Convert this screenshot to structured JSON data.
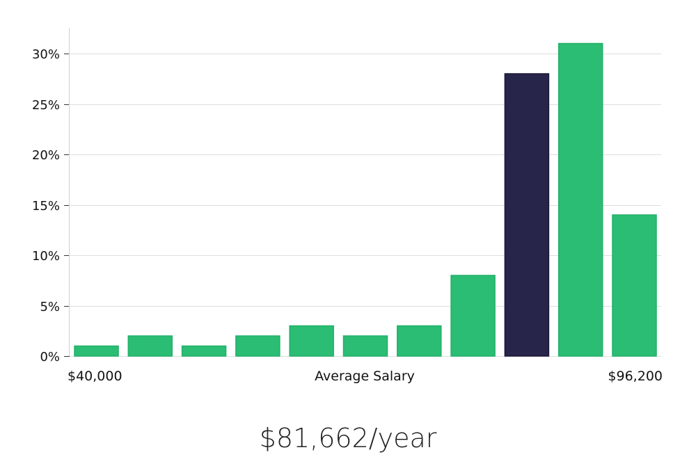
{
  "chart_data": {
    "type": "bar",
    "title": "",
    "xlabel": "Average Salary",
    "ylabel": "",
    "x_range_labels": {
      "min": "$40,000",
      "max": "$96,200"
    },
    "y_ticks": [
      0,
      5,
      10,
      15,
      20,
      25,
      30
    ],
    "y_tick_labels": [
      "0%",
      "5%",
      "10%",
      "15%",
      "20%",
      "25%",
      "30%"
    ],
    "ylim": [
      0,
      32.5
    ],
    "values": [
      1,
      2,
      1,
      2,
      3,
      2,
      3,
      8,
      28,
      31,
      14
    ],
    "highlight_index": 8,
    "grid": true
  },
  "colors": {
    "bar": "#2bbd74",
    "highlight": "#28254a",
    "grid": "#dddddd",
    "axis": "#d0d0d0"
  },
  "salary_text": "$81,662/year"
}
